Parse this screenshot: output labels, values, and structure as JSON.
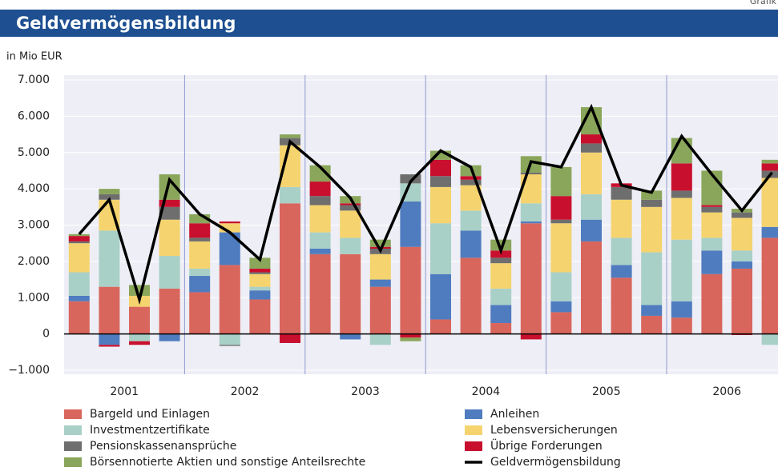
{
  "chart_data": {
    "type": "stacked-bar-line",
    "title": "Geldvermögensbildung",
    "corner_label": "Grafik",
    "y_label": "in Mio EUR",
    "categories": [
      null,
      null,
      null,
      null,
      null,
      null,
      null,
      null,
      null,
      null,
      null,
      null,
      null,
      null,
      null,
      null,
      null,
      null,
      null,
      null,
      null,
      null,
      null,
      null
    ],
    "category_groups": [
      "2001",
      "2002",
      "2003",
      "2004",
      "2005",
      "2006"
    ],
    "ylim": [
      -1000,
      7000
    ],
    "yticks": [
      {
        "value": 7000,
        "label": "7.000"
      },
      {
        "value": 6000,
        "label": "6.000"
      },
      {
        "value": 5000,
        "label": "5.000"
      },
      {
        "value": 4000,
        "label": "4.000"
      },
      {
        "value": 3000,
        "label": "3.000"
      },
      {
        "value": 2000,
        "label": "2.000"
      },
      {
        "value": 1000,
        "label": "1.000"
      },
      0,
      {
        "value": -1000,
        "label": "−1.000"
      }
    ],
    "grid": true,
    "series": [
      {
        "name": "Bargeld und Einlagen",
        "color": "#d9665c",
        "values": [
          900,
          1300,
          750,
          1250,
          1150,
          1900,
          950,
          3600,
          2200,
          2200,
          1300,
          2400,
          400,
          2100,
          300,
          3050,
          600,
          2550,
          1550,
          500,
          450,
          1650,
          1800,
          2650
        ]
      },
      {
        "name": "Anleihen",
        "color": "#4f7cbf",
        "values": [
          150,
          -300,
          0,
          -200,
          450,
          900,
          250,
          0,
          150,
          -150,
          200,
          1250,
          1250,
          750,
          500,
          50,
          300,
          600,
          350,
          300,
          450,
          650,
          200,
          300
        ]
      },
      {
        "name": "Investmentzertifikate",
        "color": "#a9d0c7",
        "values": [
          650,
          1550,
          -200,
          900,
          200,
          -300,
          100,
          450,
          450,
          450,
          -300,
          500,
          1400,
          550,
          450,
          500,
          800,
          700,
          750,
          1450,
          1700,
          350,
          300,
          -300
        ]
      },
      {
        "name": "Lebensversicherungen",
        "color": "#f5d36e",
        "values": [
          800,
          850,
          300,
          1000,
          750,
          250,
          350,
          1150,
          750,
          750,
          700,
          0,
          1000,
          700,
          700,
          800,
          1350,
          1150,
          1050,
          1250,
          1150,
          700,
          900,
          1350
        ]
      },
      {
        "name": "Pensionskassenansprüche",
        "color": "#6e6e6e",
        "values": [
          50,
          150,
          0,
          350,
          100,
          -30,
          50,
          200,
          250,
          150,
          150,
          250,
          300,
          150,
          150,
          50,
          100,
          250,
          350,
          200,
          200,
          150,
          150,
          200
        ]
      },
      {
        "name": "Übrige Forderungen",
        "color": "#c8102e",
        "values": [
          150,
          -50,
          -100,
          200,
          400,
          50,
          100,
          -250,
          400,
          50,
          50,
          -100,
          450,
          100,
          200,
          -150,
          650,
          250,
          100,
          0,
          750,
          50,
          -30,
          200
        ]
      },
      {
        "name": "Börsennotierte Aktien und sonstige Anteilsrechte",
        "color": "#8aa65a",
        "values": [
          50,
          150,
          300,
          700,
          250,
          0,
          300,
          100,
          450,
          200,
          200,
          -100,
          250,
          300,
          300,
          450,
          800,
          750,
          0,
          250,
          700,
          950,
          100,
          100
        ]
      }
    ],
    "line_series": {
      "name": "Geldvermögensbildung",
      "color": "#000000",
      "values": [
        2750,
        3700,
        950,
        4250,
        3300,
        2800,
        2050,
        5300,
        4600,
        3750,
        2300,
        4200,
        5050,
        4600,
        2300,
        4750,
        4600,
        6250,
        4100,
        3900,
        5450,
        4400,
        3400,
        4450
      ]
    }
  }
}
